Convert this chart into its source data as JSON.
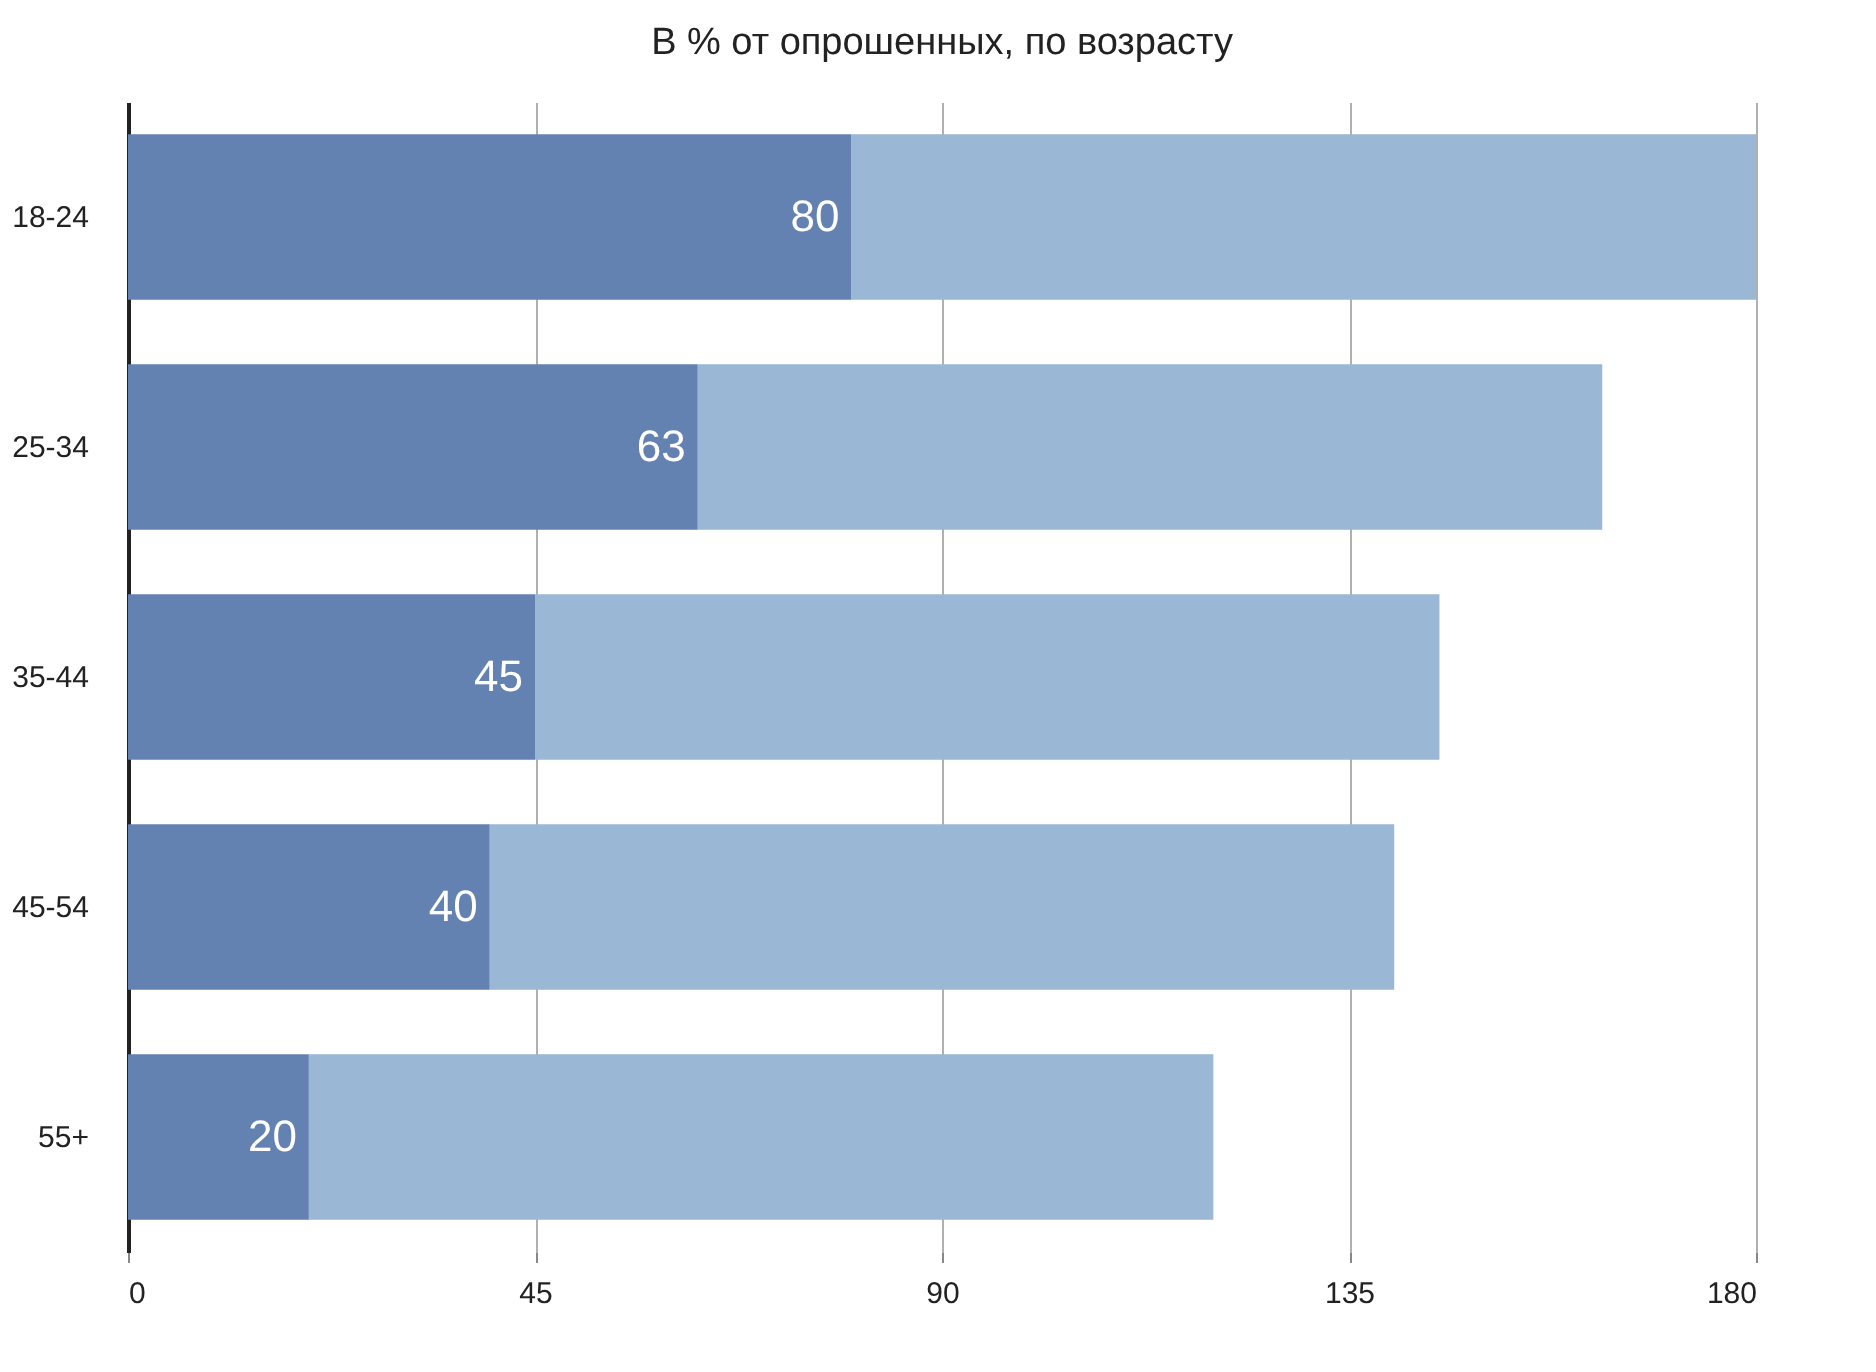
{
  "chart_data": {
    "type": "bar",
    "title": "В % от опрошенных, по возрасту",
    "orientation": "horizontal",
    "stacked": true,
    "categories": [
      "18-24",
      "25-34",
      "35-44",
      "45-54",
      "55+"
    ],
    "series": [
      {
        "color": "#6482b1",
        "values": [
          80,
          63,
          45,
          40,
          20
        ],
        "value_labels": [
          "80",
          "63",
          "45",
          "40",
          "20"
        ]
      },
      {
        "color": "#9bb7d6",
        "values": [
          100,
          100,
          100,
          100,
          100
        ]
      }
    ],
    "xlim": [
      0,
      180
    ],
    "xticks": [
      0,
      45,
      90,
      135,
      180
    ],
    "grid": "x",
    "legend": false
  }
}
